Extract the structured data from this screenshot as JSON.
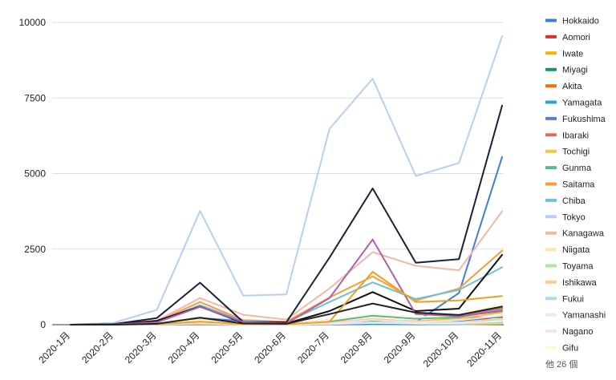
{
  "chart_data": {
    "type": "line",
    "categories": [
      "2020-1月",
      "2020-2月",
      "2020-3月",
      "2020-4月",
      "2020-5月",
      "2020-6月",
      "2020-7月",
      "2020-8月",
      "2020-9月",
      "2020-10月",
      "2020-11月"
    ],
    "ylim": [
      0,
      10000
    ],
    "yticks": [
      0,
      2500,
      5000,
      7500,
      10000
    ],
    "grid": true,
    "legend_position": "right",
    "legend_more": "他 26 個",
    "series": [
      {
        "name": "Hokkaido",
        "color": "#3d7be0",
        "values": [
          0,
          2,
          15,
          220,
          120,
          20,
          80,
          160,
          80,
          1050,
          5550
        ]
      },
      {
        "name": "Aomori",
        "color": "#d93025",
        "values": [
          0,
          0,
          0,
          10,
          5,
          0,
          5,
          20,
          10,
          20,
          300
        ]
      },
      {
        "name": "Iwate",
        "color": "#f4b400",
        "values": [
          0,
          0,
          0,
          0,
          0,
          0,
          0,
          10,
          5,
          10,
          30
        ]
      },
      {
        "name": "Miyagi",
        "color": "#0f9d58",
        "values": [
          0,
          1,
          10,
          80,
          20,
          5,
          30,
          120,
          100,
          220,
          250
        ]
      },
      {
        "name": "Akita",
        "color": "#ff6d00",
        "values": [
          0,
          0,
          5,
          20,
          5,
          0,
          5,
          20,
          10,
          20,
          80
        ]
      },
      {
        "name": "Yamagata",
        "color": "#26a6cf",
        "values": [
          0,
          0,
          5,
          60,
          10,
          0,
          10,
          30,
          20,
          40,
          80
        ]
      },
      {
        "name": "Fukushima",
        "color": "#4f7fdb",
        "values": [
          0,
          0,
          5,
          60,
          10,
          0,
          10,
          50,
          30,
          100,
          300
        ]
      },
      {
        "name": "Ibaraki",
        "color": "#e06666",
        "values": [
          0,
          0,
          20,
          150,
          20,
          10,
          150,
          300,
          200,
          300,
          550
        ]
      },
      {
        "name": "Tochigi",
        "color": "#f6c343",
        "values": [
          0,
          0,
          10,
          50,
          10,
          5,
          80,
          150,
          120,
          200,
          400
        ]
      },
      {
        "name": "Gunma",
        "color": "#57bb8a",
        "values": [
          0,
          0,
          15,
          130,
          20,
          5,
          100,
          300,
          200,
          250,
          500
        ]
      },
      {
        "name": "Saitama",
        "color": "#ff9a3c",
        "values": [
          0,
          10,
          110,
          750,
          150,
          100,
          900,
          1600,
          800,
          1200,
          2450
        ]
      },
      {
        "name": "Chiba",
        "color": "#6fc1d1",
        "values": [
          0,
          10,
          100,
          650,
          120,
          80,
          750,
          1400,
          850,
          1150,
          1900
        ]
      },
      {
        "name": "Tokyo",
        "color": "#b7cff4",
        "values": [
          0,
          60,
          490,
          3760,
          960,
          1000,
          6480,
          8140,
          4920,
          5350,
          9550
        ]
      },
      {
        "name": "Kanagawa",
        "color": "#f4b6a8",
        "values": [
          0,
          30,
          130,
          880,
          330,
          170,
          1200,
          2400,
          1950,
          1800,
          3750
        ]
      },
      {
        "name": "Niigata",
        "color": "#ffe9a8",
        "values": [
          0,
          0,
          20,
          60,
          10,
          0,
          30,
          80,
          60,
          80,
          200
        ]
      },
      {
        "name": "Toyama",
        "color": "#b7e1a1",
        "values": [
          0,
          0,
          20,
          220,
          10,
          0,
          20,
          80,
          60,
          60,
          100
        ]
      },
      {
        "name": "Ishikawa",
        "color": "#f9cb9c",
        "values": [
          0,
          0,
          20,
          240,
          20,
          0,
          60,
          200,
          100,
          80,
          180
        ]
      },
      {
        "name": "Fukui",
        "color": "#a2e1e8",
        "values": [
          0,
          0,
          20,
          100,
          10,
          0,
          20,
          80,
          30,
          30,
          50
        ]
      },
      {
        "name": "Yamanashi",
        "color": "#e3eef9",
        "values": [
          0,
          0,
          10,
          40,
          5,
          0,
          20,
          60,
          40,
          50,
          120
        ]
      },
      {
        "name": "Nagano",
        "color": "#fbe3e3",
        "values": [
          0,
          0,
          5,
          50,
          5,
          0,
          40,
          150,
          80,
          150,
          300
        ]
      },
      {
        "name": "Gifu",
        "color": "#fdf6dc",
        "values": [
          0,
          0,
          15,
          150,
          20,
          0,
          150,
          350,
          250,
          300,
          700
        ]
      },
      {
        "name": "",
        "color": "#1a2238",
        "values": [
          0,
          20,
          220,
          1390,
          90,
          80,
          2220,
          4510,
          2050,
          2170,
          7250
        ]
      },
      {
        "name": "",
        "color": "#111111",
        "values": [
          0,
          10,
          130,
          600,
          60,
          40,
          450,
          1080,
          450,
          530,
          2310
        ]
      },
      {
        "name": "",
        "color": "#b05ea8",
        "values": [
          0,
          10,
          80,
          590,
          90,
          40,
          880,
          2820,
          350,
          280,
          450
        ]
      },
      {
        "name": "",
        "color": "#f0a020",
        "values": [
          0,
          0,
          20,
          100,
          20,
          10,
          100,
          1750,
          750,
          800,
          950
        ]
      },
      {
        "name": "",
        "color": "#222222",
        "values": [
          0,
          0,
          30,
          230,
          40,
          30,
          350,
          700,
          400,
          320,
          600
        ]
      }
    ]
  }
}
